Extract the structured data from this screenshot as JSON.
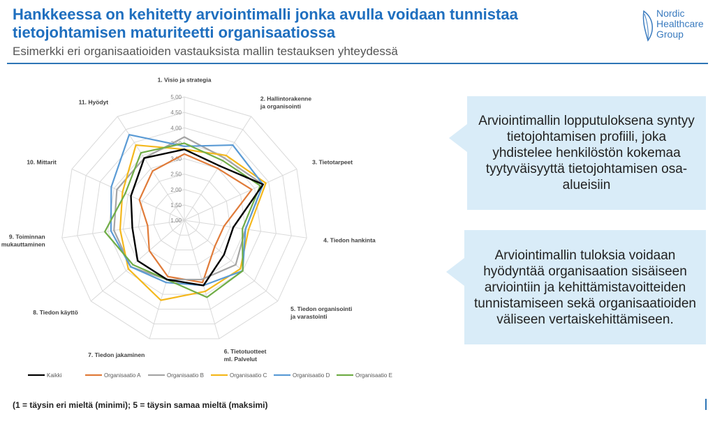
{
  "header": {
    "title": "Hankkeessa on kehitetty arviointimalli jonka avulla voidaan tunnistaa tietojohtamisen maturiteetti organisaatiossa",
    "subtitle": "Esimerkki eri organisaatioiden vastauksista mallin testauksen yhteydessä"
  },
  "logo": {
    "line1": "Nordic",
    "line2": "Healthcare",
    "line3": "Group",
    "icon": "leaf-icon"
  },
  "callouts": {
    "first": "Arviointimallin lopputuloksena syntyy tietojohtamisen profiili, joka yhdistelee henkilöstön kokemaa tyytyväisyyttä tietojohtamisen osa-alueisiin",
    "second": "Arviointimallin tuloksia voidaan hyödyntää organisaation sisäiseen arviointiin ja kehittämistavoitteiden tunnistamiseen sekä organisaatioiden väliseen vertaiskehittämiseen."
  },
  "footnote": "(1 = täysin eri mieltä (minimi); 5 = täysin samaa mieltä (maksimi)",
  "chart_data": {
    "type": "radar",
    "categories": [
      "1. Visio ja strategia",
      "2. Hallintorakenne ja organisointi",
      "3. Tietotarpeet",
      "4. Tiedon hankinta",
      "5. Tiedon organisointi ja varastointi",
      "6. Tietotuotteet ml. Palvelut",
      "7. Tiedon jakaminen",
      "8. Tiedon käyttö",
      "9. Toiminnan mukauttaminen",
      "10. Mittarit",
      "11. Hyödyt"
    ],
    "ticks": [
      "1,00",
      "1,50",
      "2,00",
      "2,50",
      "3,00",
      "3,50",
      "4,00",
      "4,50",
      "5,00"
    ],
    "range": [
      1,
      5
    ],
    "legend_position": "bottom",
    "series": [
      {
        "name": "Kaikki",
        "color": "#000000",
        "values": [
          3.3,
          3.1,
          3.8,
          2.6,
          2.7,
          3.2,
          3.0,
          3.0,
          2.7,
          2.9,
          3.4
        ]
      },
      {
        "name": "Organisaatio A",
        "color": "#e07b39",
        "values": [
          3.15,
          3.0,
          3.4,
          2.3,
          2.3,
          3.1,
          2.9,
          2.5,
          2.2,
          2.6,
          2.9
        ]
      },
      {
        "name": "Organisaatio B",
        "color": "#a5a5a5",
        "values": [
          3.7,
          3.4,
          3.8,
          3.0,
          3.2,
          3.0,
          3.0,
          3.3,
          3.3,
          3.4,
          3.4
        ]
      },
      {
        "name": "Organisaatio C",
        "color": "#f4b81d",
        "values": [
          3.3,
          3.5,
          3.9,
          3.1,
          3.4,
          3.4,
          3.7,
          3.4,
          3.1,
          3.2,
          3.9
        ]
      },
      {
        "name": "Organisaatio D",
        "color": "#5b9bd5",
        "values": [
          3.4,
          3.9,
          3.8,
          3.0,
          3.5,
          3.2,
          3.1,
          3.3,
          3.4,
          3.6,
          4.3
        ]
      },
      {
        "name": "Organisaatio E",
        "color": "#70ad47",
        "values": [
          3.5,
          3.3,
          3.7,
          2.9,
          3.5,
          3.6,
          3.0,
          3.2,
          3.6,
          3.1,
          3.6
        ]
      }
    ]
  }
}
